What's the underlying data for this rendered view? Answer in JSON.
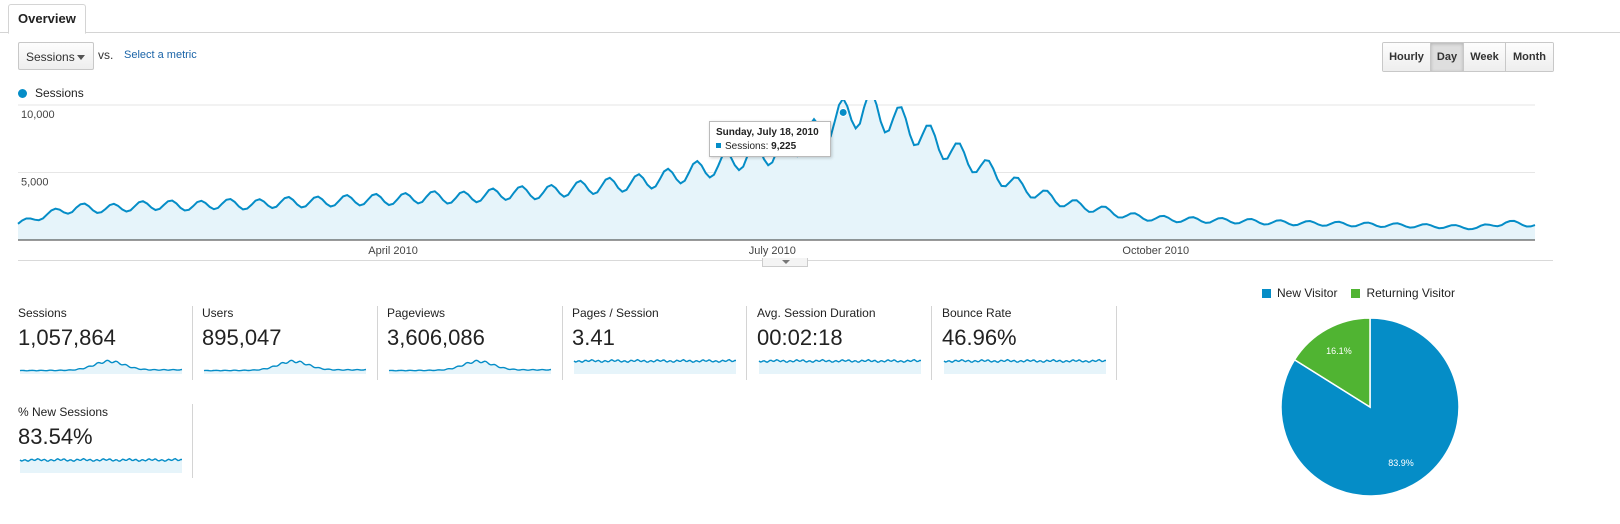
{
  "tabs": [
    {
      "label": "Overview"
    }
  ],
  "toolbar": {
    "metric_select": "Sessions",
    "vs_label": "vs.",
    "select_metric_link": "Select a metric",
    "granularity": [
      {
        "label": "Hourly",
        "active": false
      },
      {
        "label": "Day",
        "active": true
      },
      {
        "label": "Week",
        "active": false
      },
      {
        "label": "Month",
        "active": false
      }
    ]
  },
  "chart_data": [
    {
      "type": "area",
      "series": [
        {
          "name": "Sessions",
          "color": "#058dc7"
        }
      ],
      "ylim": [
        0,
        10000
      ],
      "yticks": [
        5000,
        10000
      ],
      "ytick_labels": [
        "5,000",
        "10,000"
      ],
      "xtick_labels": [
        "April 2010",
        "July 2010",
        "October 2010"
      ],
      "xlim": [
        "2010-01-01",
        "2010-12-31"
      ],
      "grid": true,
      "legend": "top-left",
      "points": [
        [
          "2010-01-01",
          1200
        ],
        [
          "2010-01-08",
          1900
        ],
        [
          "2010-01-15",
          2400
        ],
        [
          "2010-01-22",
          2300
        ],
        [
          "2010-01-29",
          2500
        ],
        [
          "2010-02-05",
          2600
        ],
        [
          "2010-02-12",
          2500
        ],
        [
          "2010-02-19",
          2700
        ],
        [
          "2010-02-26",
          2600
        ],
        [
          "2010-03-05",
          2800
        ],
        [
          "2010-03-12",
          2800
        ],
        [
          "2010-03-19",
          2900
        ],
        [
          "2010-03-26",
          3000
        ],
        [
          "2010-04-02",
          3000
        ],
        [
          "2010-04-09",
          3200
        ],
        [
          "2010-04-16",
          3100
        ],
        [
          "2010-04-23",
          3300
        ],
        [
          "2010-04-30",
          3500
        ],
        [
          "2010-05-07",
          3500
        ],
        [
          "2010-05-14",
          3800
        ],
        [
          "2010-05-21",
          4000
        ],
        [
          "2010-05-28",
          4200
        ],
        [
          "2010-06-04",
          4500
        ],
        [
          "2010-06-11",
          5000
        ],
        [
          "2010-06-18",
          5500
        ],
        [
          "2010-06-25",
          6200
        ],
        [
          "2010-07-02",
          6500
        ],
        [
          "2010-07-09",
          7500
        ],
        [
          "2010-07-16",
          8800
        ],
        [
          "2010-07-18",
          9225
        ],
        [
          "2010-07-23",
          9800
        ],
        [
          "2010-07-30",
          9000
        ],
        [
          "2010-08-06",
          7800
        ],
        [
          "2010-08-13",
          6600
        ],
        [
          "2010-08-20",
          5500
        ],
        [
          "2010-08-27",
          4300
        ],
        [
          "2010-09-03",
          3400
        ],
        [
          "2010-09-10",
          2700
        ],
        [
          "2010-09-17",
          2300
        ],
        [
          "2010-09-24",
          1800
        ],
        [
          "2010-10-01",
          1600
        ],
        [
          "2010-10-08",
          1500
        ],
        [
          "2010-10-15",
          1450
        ],
        [
          "2010-10-22",
          1400
        ],
        [
          "2010-10-29",
          1300
        ],
        [
          "2010-11-05",
          1250
        ],
        [
          "2010-11-12",
          1200
        ],
        [
          "2010-11-19",
          1150
        ],
        [
          "2010-11-26",
          1100
        ],
        [
          "2010-12-03",
          1050
        ],
        [
          "2010-12-10",
          1000
        ],
        [
          "2010-12-17",
          900
        ],
        [
          "2010-12-24",
          1300
        ],
        [
          "2010-12-31",
          1100
        ]
      ],
      "tooltip": {
        "date": "Sunday, July 18, 2010",
        "label": "Sessions:",
        "value": "9,225",
        "x": "2010-07-18",
        "y": 9225
      }
    },
    {
      "type": "pie",
      "legend": "top",
      "slices": [
        {
          "name": "New Visitor",
          "value": 83.9,
          "label": "83.9%",
          "color": "#058dc7"
        },
        {
          "name": "Returning Visitor",
          "value": 16.1,
          "label": "16.1%",
          "color": "#50b432"
        }
      ]
    }
  ],
  "metrics": [
    {
      "label": "Sessions",
      "value": "1,057,864",
      "trend": "peak"
    },
    {
      "label": "Users",
      "value": "895,047",
      "trend": "peak"
    },
    {
      "label": "Pageviews",
      "value": "3,606,086",
      "trend": "peak"
    },
    {
      "label": "Pages / Session",
      "value": "3.41",
      "trend": "flat"
    },
    {
      "label": "Avg. Session Duration",
      "value": "00:02:18",
      "trend": "flat"
    },
    {
      "label": "Bounce Rate",
      "value": "46.96%",
      "trend": "flat"
    },
    {
      "label": "% New Sessions",
      "value": "83.54%",
      "trend": "flat"
    }
  ]
}
